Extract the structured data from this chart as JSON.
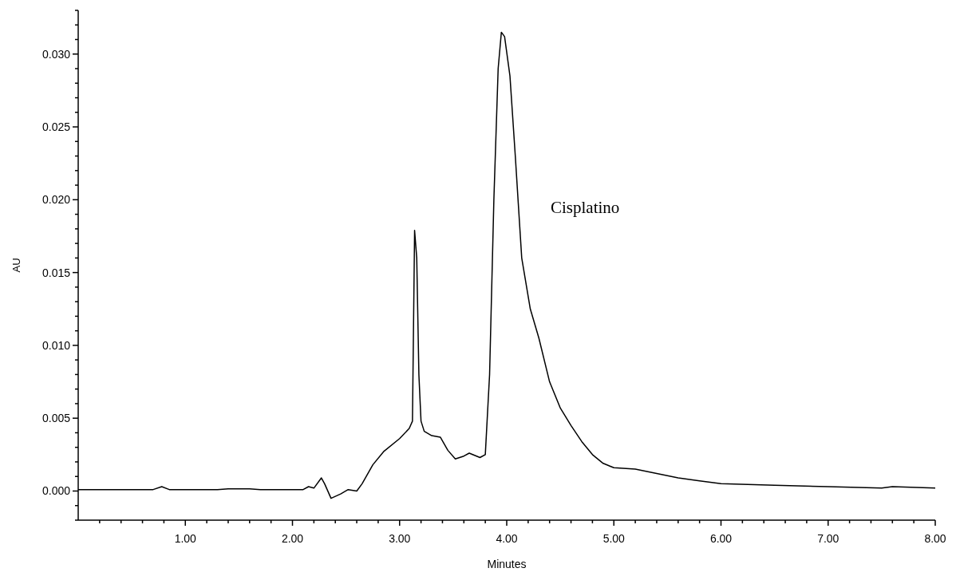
{
  "chart_data": {
    "type": "line",
    "xlabel": "Minutes",
    "ylabel": "AU",
    "annotations": [
      "Cisplatino"
    ],
    "x": [
      0,
      0.3,
      0.7,
      0.78,
      0.85,
      1.3,
      1.4,
      1.6,
      1.7,
      2.1,
      2.15,
      2.2,
      2.27,
      2.3,
      2.36,
      2.45,
      2.52,
      2.6,
      2.65,
      2.75,
      2.85,
      3.0,
      3.09,
      3.12,
      3.14,
      3.16,
      3.18,
      3.2,
      3.23,
      3.3,
      3.38,
      3.45,
      3.52,
      3.6,
      3.65,
      3.75,
      3.8,
      3.84,
      3.88,
      3.92,
      3.95,
      3.98,
      4.03,
      4.08,
      4.14,
      4.22,
      4.3,
      4.4,
      4.5,
      4.6,
      4.7,
      4.8,
      4.9,
      5.0,
      5.2,
      5.4,
      5.6,
      5.8,
      6.0,
      6.5,
      7.0,
      7.5,
      7.6,
      8.0
    ],
    "series": [
      {
        "color": "#000000",
        "values": [
          0.0001,
          0.0001,
          0.0001,
          0.0003,
          0.0001,
          0.0001,
          0.00015,
          0.00015,
          0.0001,
          0.0001,
          0.0003,
          0.0002,
          0.0009,
          0.0005,
          -0.0005,
          -0.0002,
          0.0001,
          0.0,
          0.0005,
          0.0018,
          0.0027,
          0.0036,
          0.0043,
          0.0048,
          0.0179,
          0.016,
          0.008,
          0.0048,
          0.0041,
          0.0038,
          0.0037,
          0.0028,
          0.0022,
          0.0024,
          0.0026,
          0.0023,
          0.0025,
          0.008,
          0.02,
          0.029,
          0.0315,
          0.0312,
          0.0285,
          0.023,
          0.016,
          0.0125,
          0.0105,
          0.0075,
          0.0057,
          0.0045,
          0.0034,
          0.0025,
          0.0019,
          0.0016,
          0.0015,
          0.0012,
          0.0009,
          0.0007,
          0.0005,
          0.0004,
          0.0003,
          0.0002,
          0.0003,
          0.0002
        ]
      }
    ],
    "xlim": [
      0,
      8
    ],
    "xticks": [
      {
        "value": 0.2,
        "label": null
      },
      {
        "value": 0.4,
        "label": null
      },
      {
        "value": 0.6,
        "label": null
      },
      {
        "value": 0.8,
        "label": null
      },
      {
        "value": 1,
        "label": "1.00"
      },
      {
        "value": 1.2,
        "label": null
      },
      {
        "value": 1.4,
        "label": null
      },
      {
        "value": 1.6,
        "label": null
      },
      {
        "value": 1.8,
        "label": null
      },
      {
        "value": 2,
        "label": "2.00"
      },
      {
        "value": 2.2,
        "label": null
      },
      {
        "value": 2.4,
        "label": null
      },
      {
        "value": 2.6,
        "label": null
      },
      {
        "value": 2.8,
        "label": null
      },
      {
        "value": 3,
        "label": "3.00"
      },
      {
        "value": 3.2,
        "label": null
      },
      {
        "value": 3.4,
        "label": null
      },
      {
        "value": 3.6,
        "label": null
      },
      {
        "value": 3.8,
        "label": null
      },
      {
        "value": 4,
        "label": "4.00"
      },
      {
        "value": 4.2,
        "label": null
      },
      {
        "value": 4.4,
        "label": null
      },
      {
        "value": 4.6,
        "label": null
      },
      {
        "value": 4.8,
        "label": null
      },
      {
        "value": 5,
        "label": "5.00"
      },
      {
        "value": 5.2,
        "label": null
      },
      {
        "value": 5.4,
        "label": null
      },
      {
        "value": 5.6,
        "label": null
      },
      {
        "value": 5.8,
        "label": null
      },
      {
        "value": 6,
        "label": "6.00"
      },
      {
        "value": 6.2,
        "label": null
      },
      {
        "value": 6.4,
        "label": null
      },
      {
        "value": 6.6,
        "label": null
      },
      {
        "value": 6.8,
        "label": null
      },
      {
        "value": 7,
        "label": "7.00"
      },
      {
        "value": 7.2,
        "label": null
      },
      {
        "value": 7.4,
        "label": null
      },
      {
        "value": 7.6,
        "label": null
      },
      {
        "value": 7.8,
        "label": null
      },
      {
        "value": 8,
        "label": "8.00"
      }
    ],
    "ylim": [
      -0.002,
      0.033
    ],
    "yticks": [
      {
        "value": -0.002,
        "label": null
      },
      {
        "value": -0.001,
        "label": null
      },
      {
        "value": 0,
        "label": "0.000"
      },
      {
        "value": 0.001,
        "label": null
      },
      {
        "value": 0.002,
        "label": null
      },
      {
        "value": 0.003,
        "label": null
      },
      {
        "value": 0.004,
        "label": null
      },
      {
        "value": 0.005,
        "label": "0.005"
      },
      {
        "value": 0.006,
        "label": null
      },
      {
        "value": 0.007,
        "label": null
      },
      {
        "value": 0.008,
        "label": null
      },
      {
        "value": 0.009,
        "label": null
      },
      {
        "value": 0.01,
        "label": "0.010"
      },
      {
        "value": 0.011,
        "label": null
      },
      {
        "value": 0.012,
        "label": null
      },
      {
        "value": 0.013,
        "label": null
      },
      {
        "value": 0.014,
        "label": null
      },
      {
        "value": 0.015,
        "label": "0.015"
      },
      {
        "value": 0.016,
        "label": null
      },
      {
        "value": 0.017,
        "label": null
      },
      {
        "value": 0.018,
        "label": null
      },
      {
        "value": 0.019,
        "label": null
      },
      {
        "value": 0.02,
        "label": "0.020"
      },
      {
        "value": 0.021,
        "label": null
      },
      {
        "value": 0.022,
        "label": null
      },
      {
        "value": 0.023,
        "label": null
      },
      {
        "value": 0.024,
        "label": null
      },
      {
        "value": 0.025,
        "label": "0.025"
      },
      {
        "value": 0.026,
        "label": null
      },
      {
        "value": 0.027,
        "label": null
      },
      {
        "value": 0.028,
        "label": null
      },
      {
        "value": 0.029,
        "label": null
      },
      {
        "value": 0.03,
        "label": "0.030"
      },
      {
        "value": 0.031,
        "label": null
      },
      {
        "value": 0.032,
        "label": null
      },
      {
        "value": 0.033,
        "label": null
      }
    ],
    "grid": false,
    "legend": false,
    "marker": "none",
    "line_style": "solid"
  }
}
